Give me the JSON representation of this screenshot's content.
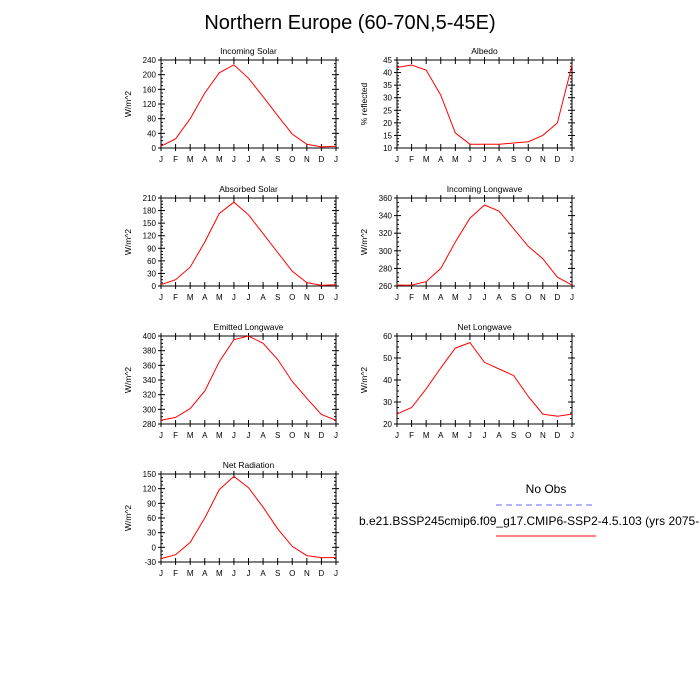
{
  "page": {
    "title": "Northern Europe (60-70N,5-45E)"
  },
  "legend": {
    "obs_label": "No Obs",
    "obs_color": "#6666ff",
    "model_label": "b.e21.BSSP245cmip6.f09_g17.CMIP6-SSP2-4.5.103 (yrs 2075-",
    "model_color": "#ff0000"
  },
  "chart_data": [
    {
      "type": "line",
      "title": "Incoming Solar",
      "xlabel": "",
      "ylabel": "W/m^2",
      "categories": [
        "J",
        "F",
        "M",
        "A",
        "M",
        "J",
        "J",
        "A",
        "S",
        "O",
        "N",
        "D",
        "J"
      ],
      "series": [
        {
          "values": [
            5,
            25,
            80,
            150,
            205,
            227,
            190,
            140,
            88,
            38,
            10,
            3,
            5
          ]
        }
      ],
      "ylim": [
        0,
        240
      ],
      "yticks": [
        0,
        40,
        80,
        120,
        160,
        200,
        240
      ],
      "grid": false
    },
    {
      "type": "line",
      "title": "Albedo",
      "xlabel": "",
      "ylabel": "% reflected",
      "categories": [
        "J",
        "F",
        "M",
        "A",
        "M",
        "J",
        "J",
        "A",
        "S",
        "O",
        "N",
        "D",
        "J"
      ],
      "series": [
        {
          "values": [
            42,
            43,
            41,
            31,
            16,
            11.5,
            11.5,
            11.5,
            12,
            12.5,
            15,
            20,
            43
          ]
        }
      ],
      "ylim": [
        10,
        45
      ],
      "yticks": [
        10,
        15,
        20,
        25,
        30,
        35,
        40,
        45
      ],
      "grid": false
    },
    {
      "type": "line",
      "title": "Absorbed Solar",
      "xlabel": "",
      "ylabel": "W/m^2",
      "categories": [
        "J",
        "F",
        "M",
        "A",
        "M",
        "J",
        "J",
        "A",
        "S",
        "O",
        "N",
        "D",
        "J"
      ],
      "series": [
        {
          "values": [
            3,
            15,
            45,
            105,
            173,
            200,
            170,
            125,
            80,
            35,
            8,
            2,
            3
          ]
        }
      ],
      "ylim": [
        0,
        210
      ],
      "yticks": [
        0,
        30,
        60,
        90,
        120,
        150,
        180,
        210
      ],
      "grid": false
    },
    {
      "type": "line",
      "title": "Incoming Longwave",
      "xlabel": "",
      "ylabel": "W/m^2",
      "categories": [
        "J",
        "F",
        "M",
        "A",
        "M",
        "J",
        "J",
        "A",
        "S",
        "O",
        "N",
        "D",
        "J"
      ],
      "series": [
        {
          "values": [
            261,
            261,
            265,
            280,
            310,
            337,
            352,
            345,
            325,
            305,
            291,
            270,
            261
          ]
        }
      ],
      "ylim": [
        260,
        360
      ],
      "yticks": [
        260,
        280,
        300,
        320,
        340,
        360
      ],
      "grid": false
    },
    {
      "type": "line",
      "title": "Emitted Longwave",
      "xlabel": "",
      "ylabel": "W/m^2",
      "categories": [
        "J",
        "F",
        "M",
        "A",
        "M",
        "J",
        "J",
        "A",
        "S",
        "O",
        "N",
        "D",
        "J"
      ],
      "series": [
        {
          "values": [
            285,
            289,
            301,
            325,
            365,
            395,
            400,
            390,
            368,
            338,
            315,
            293,
            285
          ]
        }
      ],
      "ylim": [
        280,
        400
      ],
      "yticks": [
        280,
        300,
        320,
        340,
        360,
        380,
        400
      ],
      "grid": false
    },
    {
      "type": "line",
      "title": "Net Longwave",
      "xlabel": "",
      "ylabel": "W/m^2",
      "categories": [
        "J",
        "F",
        "M",
        "A",
        "M",
        "J",
        "J",
        "A",
        "S",
        "O",
        "N",
        "D",
        "J"
      ],
      "series": [
        {
          "values": [
            24.5,
            27.5,
            36,
            45.5,
            54.5,
            57,
            48,
            45,
            42,
            32.5,
            24.5,
            23.5,
            24.5
          ]
        }
      ],
      "ylim": [
        20,
        60
      ],
      "yticks": [
        20,
        30,
        40,
        50,
        60
      ],
      "grid": false
    },
    {
      "type": "line",
      "title": "Net Radiation",
      "xlabel": "",
      "ylabel": "W/m^2",
      "categories": [
        "J",
        "F",
        "M",
        "A",
        "M",
        "J",
        "J",
        "A",
        "S",
        "O",
        "N",
        "D",
        "J"
      ],
      "series": [
        {
          "values": [
            -23,
            -15,
            10,
            60,
            118,
            145,
            122,
            82,
            38,
            2,
            -17,
            -21,
            -21
          ]
        }
      ],
      "ylim": [
        -30,
        150
      ],
      "yticks": [
        -30,
        0,
        30,
        60,
        90,
        120,
        150
      ],
      "grid": false
    }
  ]
}
